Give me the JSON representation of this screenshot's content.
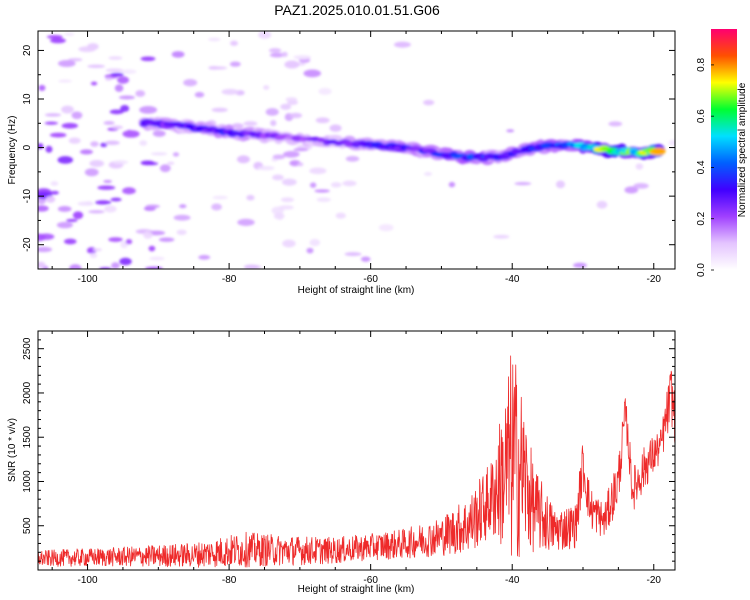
{
  "title": "PAZ1.2025.010.01.51.G06",
  "chart_data": [
    {
      "type": "heatmap",
      "xlabel": "Height of straight line (km)",
      "ylabel": "Frequency (Hz)",
      "xlim": [
        -107,
        -17
      ],
      "ylim": [
        -25,
        24
      ],
      "xticks": [
        -100,
        -80,
        -60,
        -40,
        -20
      ],
      "yticks": [
        -20,
        -10,
        0,
        10,
        20
      ],
      "colorbar": {
        "label": "Normalized spectral amplitude",
        "ticks": [
          0.0,
          0.2,
          0.4,
          0.6,
          0.8
        ],
        "tick_labels": [
          "0.0",
          "0.2",
          "0.4",
          "0.6",
          "0.8"
        ],
        "range": [
          0,
          0.94
        ],
        "colormap": [
          "#ffffff",
          "#e4c4ff",
          "#a040ff",
          "#4000ff",
          "#0060ff",
          "#00e0ff",
          "#00ff30",
          "#ffff00",
          "#ff5000",
          "#ff0070"
        ]
      },
      "ridge": [
        {
          "x": -92,
          "f": 5.0,
          "a": 0.28
        },
        {
          "x": -87,
          "f": 4.5,
          "a": 0.3
        },
        {
          "x": -82,
          "f": 3.5,
          "a": 0.33
        },
        {
          "x": -77,
          "f": 2.8,
          "a": 0.32
        },
        {
          "x": -72,
          "f": 2.0,
          "a": 0.22
        },
        {
          "x": -62,
          "f": 0.8,
          "a": 0.28
        },
        {
          "x": -57,
          "f": 0.2,
          "a": 0.36
        },
        {
          "x": -52,
          "f": -0.8,
          "a": 0.32
        },
        {
          "x": -47,
          "f": -2.0,
          "a": 0.4
        },
        {
          "x": -42,
          "f": -2.0,
          "a": 0.35
        },
        {
          "x": -37,
          "f": 0.0,
          "a": 0.38
        },
        {
          "x": -32,
          "f": 0.6,
          "a": 0.4
        },
        {
          "x": -27,
          "f": -0.5,
          "a": 0.72
        },
        {
          "x": -22,
          "f": -1.0,
          "a": 0.6
        },
        {
          "x": -19,
          "f": -0.7,
          "a": 0.88
        }
      ]
    },
    {
      "type": "line",
      "xlabel": "Height of straight line (km)",
      "ylabel": "SNR (10 * v/v)",
      "xlim": [
        -107,
        -17
      ],
      "ylim": [
        0,
        2700
      ],
      "xticks": [
        -100,
        -80,
        -60,
        -40,
        -20
      ],
      "yticks": [
        500,
        1000,
        1500,
        2000,
        2500
      ],
      "series": [
        {
          "color": "#ee2a2a",
          "envelope": [
            {
              "x": -107,
              "base": 130,
              "spread": 90
            },
            {
              "x": -95,
              "base": 150,
              "spread": 110
            },
            {
              "x": -85,
              "base": 170,
              "spread": 140
            },
            {
              "x": -78,
              "base": 230,
              "spread": 200
            },
            {
              "x": -72,
              "base": 220,
              "spread": 170
            },
            {
              "x": -65,
              "base": 220,
              "spread": 150
            },
            {
              "x": -60,
              "base": 260,
              "spread": 150
            },
            {
              "x": -55,
              "base": 300,
              "spread": 170
            },
            {
              "x": -50,
              "base": 380,
              "spread": 220
            },
            {
              "x": -46,
              "base": 520,
              "spread": 330
            },
            {
              "x": -43,
              "base": 800,
              "spread": 450
            },
            {
              "x": -41,
              "base": 1100,
              "spread": 900
            },
            {
              "x": -40,
              "base": 1300,
              "spread": 1300
            },
            {
              "x": -38.5,
              "base": 1100,
              "spread": 900
            },
            {
              "x": -37,
              "base": 700,
              "spread": 500
            },
            {
              "x": -34,
              "base": 450,
              "spread": 250
            },
            {
              "x": -31,
              "base": 500,
              "spread": 250
            },
            {
              "x": -30,
              "base": 1200,
              "spread": 300
            },
            {
              "x": -29,
              "base": 700,
              "spread": 250
            },
            {
              "x": -27,
              "base": 550,
              "spread": 200
            },
            {
              "x": -25,
              "base": 1000,
              "spread": 300
            },
            {
              "x": -24,
              "base": 1800,
              "spread": 200
            },
            {
              "x": -23,
              "base": 900,
              "spread": 250
            },
            {
              "x": -21,
              "base": 1200,
              "spread": 250
            },
            {
              "x": -19,
              "base": 1400,
              "spread": 200
            },
            {
              "x": -17.5,
              "base": 2000,
              "spread": 350
            },
            {
              "x": -17,
              "base": 1700,
              "spread": 300
            }
          ]
        }
      ]
    }
  ]
}
